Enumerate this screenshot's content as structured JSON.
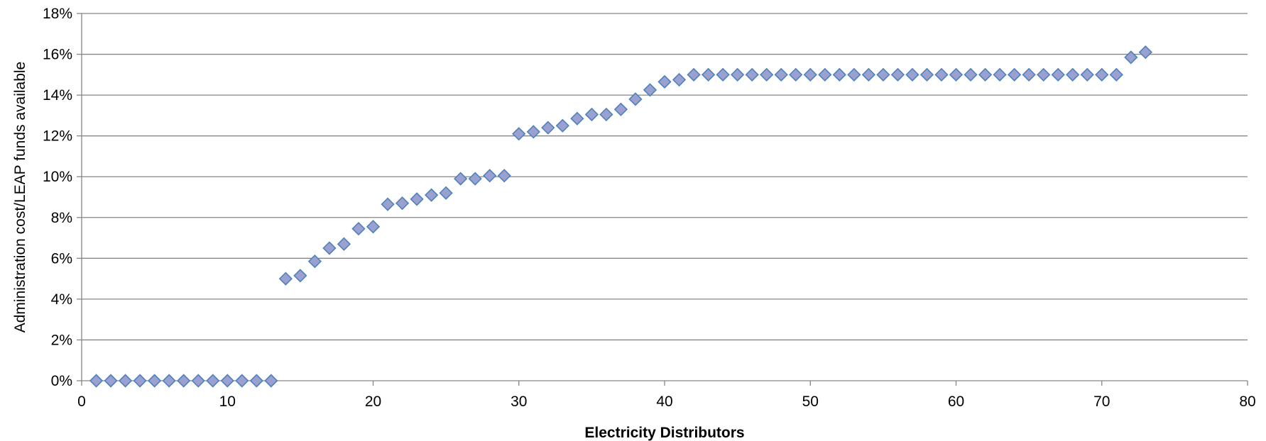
{
  "chart_data": {
    "type": "scatter",
    "title": "",
    "xlabel": "Electricity Distributors",
    "ylabel": "Administration cost/LEAP funds available",
    "xlim": [
      0,
      80
    ],
    "ylim": [
      0,
      18
    ],
    "x_ticks": [
      0,
      10,
      20,
      30,
      40,
      50,
      60,
      70,
      80
    ],
    "y_ticks": [
      0,
      2,
      4,
      6,
      8,
      10,
      12,
      14,
      16,
      18
    ],
    "x_tick_labels": [
      "0",
      "10",
      "20",
      "30",
      "40",
      "50",
      "60",
      "70",
      "80"
    ],
    "y_tick_labels": [
      "0%",
      "2%",
      "4%",
      "6%",
      "8%",
      "10%",
      "12%",
      "14%",
      "16%",
      "18%"
    ],
    "y_unit": "percent",
    "grid": "horizontal",
    "marker": "diamond",
    "colors": {
      "marker_fill": "#9aa0cf",
      "marker_edge": "#4f81bd",
      "gridline": "#868686"
    },
    "series": [
      {
        "x": [
          1,
          2,
          3,
          4,
          5,
          6,
          7,
          8,
          9,
          10,
          11,
          12,
          13,
          14,
          15,
          16,
          17,
          18,
          19,
          20,
          21,
          22,
          23,
          24,
          25,
          26,
          27,
          28,
          29,
          30,
          31,
          32,
          33,
          34,
          35,
          36,
          37,
          38,
          39,
          40,
          41,
          42,
          43,
          44,
          45,
          46,
          47,
          48,
          49,
          50,
          51,
          52,
          53,
          54,
          55,
          56,
          57,
          58,
          59,
          60,
          61,
          62,
          63,
          64,
          65,
          66,
          67,
          68,
          69,
          70,
          71,
          72,
          73
        ],
        "y": [
          0,
          0,
          0,
          0,
          0,
          0,
          0,
          0,
          0,
          0,
          0,
          0,
          0,
          5.0,
          5.15,
          5.85,
          6.5,
          6.7,
          7.45,
          7.55,
          8.65,
          8.7,
          8.9,
          9.1,
          9.2,
          9.9,
          9.9,
          10.05,
          10.05,
          12.1,
          12.2,
          12.4,
          12.5,
          12.85,
          13.05,
          13.05,
          13.3,
          13.8,
          14.25,
          14.65,
          14.75,
          15,
          15,
          15,
          15,
          15,
          15,
          15,
          15,
          15,
          15,
          15,
          15,
          15,
          15,
          15,
          15,
          15,
          15,
          15,
          15,
          15,
          15,
          15,
          15,
          15,
          15,
          15,
          15,
          15,
          15,
          15.85,
          16.1
        ]
      }
    ]
  }
}
